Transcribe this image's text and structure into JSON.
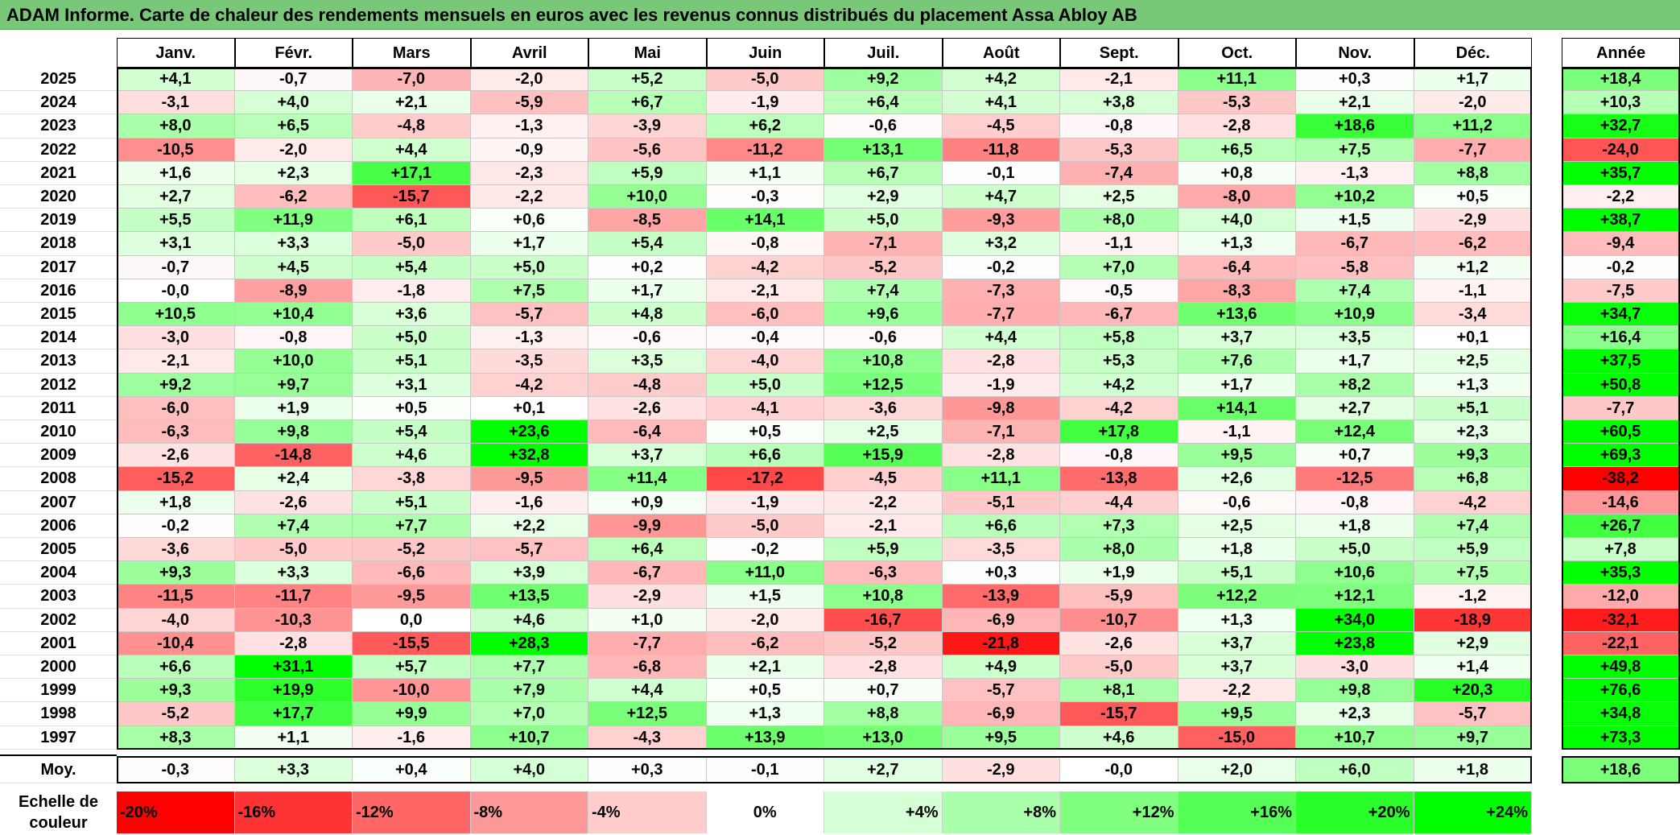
{
  "title": "ADAM Informe. Carte de chaleur des rendements mensuels en euros avec les revenus connus distribués du placement Assa Abloy AB",
  "chart_data": {
    "type": "heatmap",
    "title": "ADAM Informe. Carte de chaleur des rendements mensuels en euros avec les revenus connus distribués du placement Assa Abloy AB",
    "columns": [
      "Janv.",
      "Févr.",
      "Mars",
      "Avril",
      "Mai",
      "Juin",
      "Juil.",
      "Août",
      "Sept.",
      "Oct.",
      "Nov.",
      "Déc."
    ],
    "year_header": "Année",
    "rows": [
      {
        "year": "2025",
        "values": [
          "+4,1",
          "-0,7",
          "-7,0",
          "-2,0",
          "+5,2",
          "-5,0",
          "+9,2",
          "+4,2",
          "-2,1",
          "+11,1",
          "+0,3",
          "+1,7"
        ],
        "annual": "+18,4"
      },
      {
        "year": "2024",
        "values": [
          "-3,1",
          "+4,0",
          "+2,1",
          "-5,9",
          "+6,7",
          "-1,9",
          "+6,4",
          "+4,1",
          "+3,8",
          "-5,3",
          "+2,1",
          "-2,0"
        ],
        "annual": "+10,3"
      },
      {
        "year": "2023",
        "values": [
          "+8,0",
          "+6,5",
          "-4,8",
          "-1,3",
          "-3,9",
          "+6,2",
          "-0,6",
          "-4,5",
          "-0,8",
          "-2,8",
          "+18,6",
          "+11,2"
        ],
        "annual": "+32,7"
      },
      {
        "year": "2022",
        "values": [
          "-10,5",
          "-2,0",
          "+4,4",
          "-0,9",
          "-5,6",
          "-11,2",
          "+13,1",
          "-11,8",
          "-5,3",
          "+6,5",
          "+7,5",
          "-7,7"
        ],
        "annual": "-24,0"
      },
      {
        "year": "2021",
        "values": [
          "+1,6",
          "+2,3",
          "+17,1",
          "-2,3",
          "+5,9",
          "+1,1",
          "+6,7",
          "-0,1",
          "-7,4",
          "+0,8",
          "-1,3",
          "+8,8"
        ],
        "annual": "+35,7"
      },
      {
        "year": "2020",
        "values": [
          "+2,7",
          "-6,2",
          "-15,7",
          "-2,2",
          "+10,0",
          "-0,3",
          "+2,9",
          "+4,7",
          "+2,5",
          "-8,0",
          "+10,2",
          "+0,5"
        ],
        "annual": "-2,2"
      },
      {
        "year": "2019",
        "values": [
          "+5,5",
          "+11,9",
          "+6,1",
          "+0,6",
          "-8,5",
          "+14,1",
          "+5,0",
          "-9,3",
          "+8,0",
          "+4,0",
          "+1,5",
          "-2,9"
        ],
        "annual": "+38,7"
      },
      {
        "year": "2018",
        "values": [
          "+3,1",
          "+3,3",
          "-5,0",
          "+1,7",
          "+5,4",
          "-0,8",
          "-7,1",
          "+3,2",
          "-1,1",
          "+1,3",
          "-6,7",
          "-6,2"
        ],
        "annual": "-9,4"
      },
      {
        "year": "2017",
        "values": [
          "-0,7",
          "+4,5",
          "+5,4",
          "+5,0",
          "+0,2",
          "-4,2",
          "-5,2",
          "-0,2",
          "+7,0",
          "-6,4",
          "-5,8",
          "+1,2"
        ],
        "annual": "-0,2"
      },
      {
        "year": "2016",
        "values": [
          "-0,0",
          "-8,9",
          "-1,8",
          "+7,5",
          "+1,7",
          "-2,1",
          "+7,4",
          "-7,3",
          "-0,5",
          "-8,3",
          "+7,4",
          "-1,1"
        ],
        "annual": "-7,5"
      },
      {
        "year": "2015",
        "values": [
          "+10,5",
          "+10,4",
          "+3,6",
          "-5,7",
          "+4,8",
          "-6,0",
          "+9,6",
          "-7,7",
          "-6,7",
          "+13,6",
          "+10,9",
          "-3,4"
        ],
        "annual": "+34,7"
      },
      {
        "year": "2014",
        "values": [
          "-3,0",
          "-0,8",
          "+5,0",
          "-1,3",
          "-0,6",
          "-0,4",
          "-0,6",
          "+4,4",
          "+5,8",
          "+3,7",
          "+3,5",
          "+0,1"
        ],
        "annual": "+16,4"
      },
      {
        "year": "2013",
        "values": [
          "-2,1",
          "+10,0",
          "+5,1",
          "-3,5",
          "+3,5",
          "-4,0",
          "+10,8",
          "-2,8",
          "+5,3",
          "+7,6",
          "+1,7",
          "+2,5"
        ],
        "annual": "+37,5"
      },
      {
        "year": "2012",
        "values": [
          "+9,2",
          "+9,7",
          "+3,1",
          "-4,2",
          "-4,8",
          "+5,0",
          "+12,5",
          "-1,9",
          "+4,2",
          "+1,7",
          "+8,2",
          "+1,3"
        ],
        "annual": "+50,8"
      },
      {
        "year": "2011",
        "values": [
          "-6,0",
          "+1,9",
          "+0,5",
          "+0,1",
          "-2,6",
          "-4,1",
          "-3,6",
          "-9,8",
          "-4,2",
          "+14,1",
          "+2,7",
          "+5,1"
        ],
        "annual": "-7,7"
      },
      {
        "year": "2010",
        "values": [
          "-6,3",
          "+9,8",
          "+5,4",
          "+23,6",
          "-6,4",
          "+0,5",
          "+2,5",
          "-7,1",
          "+17,8",
          "-1,1",
          "+12,4",
          "+2,3"
        ],
        "annual": "+60,5"
      },
      {
        "year": "2009",
        "values": [
          "-2,6",
          "-14,8",
          "+4,6",
          "+32,8",
          "+3,7",
          "+6,6",
          "+15,9",
          "-2,8",
          "-0,8",
          "+9,5",
          "+0,7",
          "+9,3"
        ],
        "annual": "+69,3"
      },
      {
        "year": "2008",
        "values": [
          "-15,2",
          "+2,4",
          "-3,8",
          "-9,5",
          "+11,4",
          "-17,2",
          "-4,5",
          "+11,1",
          "-13,8",
          "+2,6",
          "-12,5",
          "+6,8"
        ],
        "annual": "-38,2"
      },
      {
        "year": "2007",
        "values": [
          "+1,8",
          "-2,6",
          "+5,1",
          "-1,6",
          "+0,9",
          "-1,9",
          "-2,2",
          "-5,1",
          "-4,4",
          "-0,6",
          "-0,8",
          "-4,2"
        ],
        "annual": "-14,6"
      },
      {
        "year": "2006",
        "values": [
          "-0,2",
          "+7,4",
          "+7,7",
          "+2,2",
          "-9,9",
          "-5,0",
          "-2,1",
          "+6,6",
          "+7,3",
          "+2,5",
          "+1,8",
          "+7,4"
        ],
        "annual": "+26,7"
      },
      {
        "year": "2005",
        "values": [
          "-3,6",
          "-5,0",
          "-5,2",
          "-5,7",
          "+6,4",
          "-0,2",
          "+5,9",
          "-3,5",
          "+8,0",
          "+1,8",
          "+5,0",
          "+5,9"
        ],
        "annual": "+7,8"
      },
      {
        "year": "2004",
        "values": [
          "+9,3",
          "+3,3",
          "-6,6",
          "+3,9",
          "-6,7",
          "+11,0",
          "-6,3",
          "+0,3",
          "+1,9",
          "+5,1",
          "+10,6",
          "+7,5"
        ],
        "annual": "+35,3"
      },
      {
        "year": "2003",
        "values": [
          "-11,5",
          "-11,7",
          "-9,5",
          "+13,5",
          "-2,9",
          "+1,5",
          "+10,8",
          "-13,9",
          "-5,9",
          "+12,2",
          "+12,1",
          "-1,2"
        ],
        "annual": "-12,0"
      },
      {
        "year": "2002",
        "values": [
          "-4,0",
          "-10,3",
          "0,0",
          "+4,6",
          "+1,0",
          "-2,0",
          "-16,7",
          "-6,9",
          "-10,7",
          "+1,3",
          "+34,0",
          "-18,9"
        ],
        "annual": "-32,1"
      },
      {
        "year": "2001",
        "values": [
          "-10,4",
          "-2,8",
          "-15,5",
          "+28,3",
          "-7,7",
          "-6,2",
          "-5,2",
          "-21,8",
          "-2,6",
          "+3,7",
          "+23,8",
          "+2,9"
        ],
        "annual": "-22,1"
      },
      {
        "year": "2000",
        "values": [
          "+6,6",
          "+31,1",
          "+5,7",
          "+7,7",
          "-6,8",
          "+2,1",
          "-2,8",
          "+4,9",
          "-5,0",
          "+3,7",
          "-3,0",
          "+1,4"
        ],
        "annual": "+49,8"
      },
      {
        "year": "1999",
        "values": [
          "+9,3",
          "+19,9",
          "-10,0",
          "+7,9",
          "+4,4",
          "+0,5",
          "+0,7",
          "-5,7",
          "+8,1",
          "-2,2",
          "+9,8",
          "+20,3"
        ],
        "annual": "+76,6"
      },
      {
        "year": "1998",
        "values": [
          "-5,2",
          "+17,7",
          "+9,9",
          "+7,0",
          "+12,5",
          "+1,3",
          "+8,8",
          "-6,9",
          "-15,7",
          "+9,5",
          "+2,3",
          "-5,7"
        ],
        "annual": "+34,8"
      },
      {
        "year": "1997",
        "values": [
          "+8,3",
          "+1,1",
          "-1,6",
          "+10,7",
          "-4,3",
          "+13,9",
          "+13,0",
          "+9,5",
          "+4,6",
          "-15,0",
          "+10,7",
          "+9,7"
        ],
        "annual": "+73,3"
      }
    ],
    "average": {
      "label": "Moy.",
      "values": [
        "-0,3",
        "+3,3",
        "+0,4",
        "+4,0",
        "+0,3",
        "-0,1",
        "+2,7",
        "-2,9",
        "-0,0",
        "+2,0",
        "+6,0",
        "+1,8"
      ],
      "annual": "+18,6"
    },
    "scale": {
      "label_line1": "Echelle de",
      "label_line2": "couleur",
      "steps": [
        {
          "label": "-20%",
          "value": -20,
          "color": "#ff0000"
        },
        {
          "label": "-16%",
          "value": -16,
          "color": "#ff3333"
        },
        {
          "label": "-12%",
          "value": -12,
          "color": "#ff6666"
        },
        {
          "label": "-8%",
          "value": -8,
          "color": "#ff9999"
        },
        {
          "label": "-4%",
          "value": -4,
          "color": "#ffcccc"
        },
        {
          "label": "0%",
          "value": 0,
          "color": "#ffffff"
        },
        {
          "label": "+4%",
          "value": 4,
          "color": "#d5ffd5"
        },
        {
          "label": "+8%",
          "value": 8,
          "color": "#aaffaa"
        },
        {
          "label": "+12%",
          "value": 12,
          "color": "#80ff80"
        },
        {
          "label": "+16%",
          "value": 16,
          "color": "#55ff55"
        },
        {
          "label": "+20%",
          "value": 20,
          "color": "#2bff2b"
        },
        {
          "label": "+24%",
          "value": 24,
          "color": "#00ff00"
        }
      ]
    }
  }
}
